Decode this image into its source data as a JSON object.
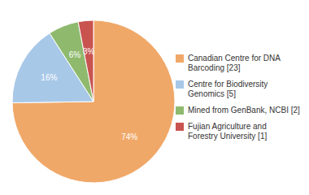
{
  "chart_data": {
    "type": "pie",
    "categories": [
      "Canadian Centre for DNA\nBarcoding [23]",
      "Centre for Biodiversity\nGenomics [5]",
      "Mined from GenBank, NCBI [2]",
      "Fujian Agriculture and\nForestry University [1]"
    ],
    "values": [
      74,
      16,
      6,
      3
    ],
    "value_labels": [
      "74%",
      "16%",
      "6%",
      "3%"
    ],
    "colors": [
      "#f0a868",
      "#a8c8e8",
      "#8fba6e",
      "#c9534f"
    ],
    "data_labels": true,
    "legend": "right"
  }
}
